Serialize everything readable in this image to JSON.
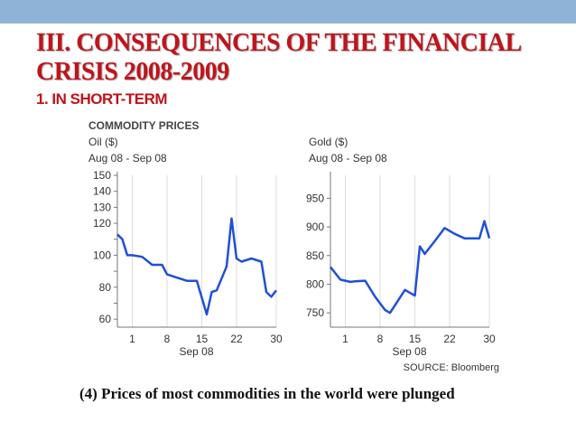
{
  "slide": {
    "title": "III. CONSEQUENCES OF THE FINANCIAL CRISIS 2008-2009",
    "subtitle": "1. IN SHORT-TERM",
    "caption": "(4) Prices of most commodities in the world were plunged",
    "top_bar_color": "#8fb3d6",
    "title_color": "#c0141b"
  },
  "chart_header": "COMMODITY PRICES",
  "source": "SOURCE: Bloomberg",
  "chart_data": [
    {
      "type": "line",
      "title": "Oil ($)",
      "subtitle": "Aug 08 - Sep 08",
      "xlabel": "Sep 08",
      "x_ticks": [
        1,
        8,
        15,
        22,
        30
      ],
      "y_ticks": [
        60,
        70,
        80,
        90,
        100,
        110,
        120,
        130,
        140,
        150
      ],
      "y_tick_labels": [
        "60",
        "",
        "80",
        "",
        "100",
        "",
        "120",
        "130",
        "140",
        "150"
      ],
      "ylim": [
        55,
        150
      ],
      "xlim": [
        -2,
        30
      ],
      "line_color": "#1f50d6",
      "x": [
        -2,
        -1,
        0,
        1,
        3,
        5,
        7,
        8,
        10,
        12,
        14,
        16,
        17,
        18,
        20,
        21,
        22,
        23,
        25,
        27,
        28,
        29,
        30
      ],
      "values": [
        113,
        110,
        100,
        100,
        99,
        94,
        94,
        88,
        86,
        84,
        84,
        63,
        77,
        78,
        93,
        123,
        98,
        96,
        98,
        96,
        77,
        74,
        78
      ]
    },
    {
      "type": "line",
      "title": "Gold ($)",
      "subtitle": "Aug 08 - Sep 08",
      "xlabel": "Sep 08",
      "x_ticks": [
        1,
        8,
        15,
        22,
        30
      ],
      "y_ticks": [
        750,
        800,
        850,
        900,
        950
      ],
      "y_tick_labels": [
        "750",
        "800",
        "850",
        "900",
        "950"
      ],
      "ylim": [
        725,
        990
      ],
      "xlim": [
        -2,
        30
      ],
      "line_color": "#1f50d6",
      "x": [
        -2,
        0,
        2,
        3,
        5,
        7,
        9,
        10,
        13,
        15,
        16,
        17,
        19,
        21,
        23,
        25,
        27,
        28,
        29,
        30
      ],
      "values": [
        830,
        808,
        804,
        805,
        806,
        778,
        755,
        750,
        790,
        780,
        866,
        853,
        875,
        898,
        888,
        880,
        880,
        880,
        910,
        880
      ]
    }
  ]
}
